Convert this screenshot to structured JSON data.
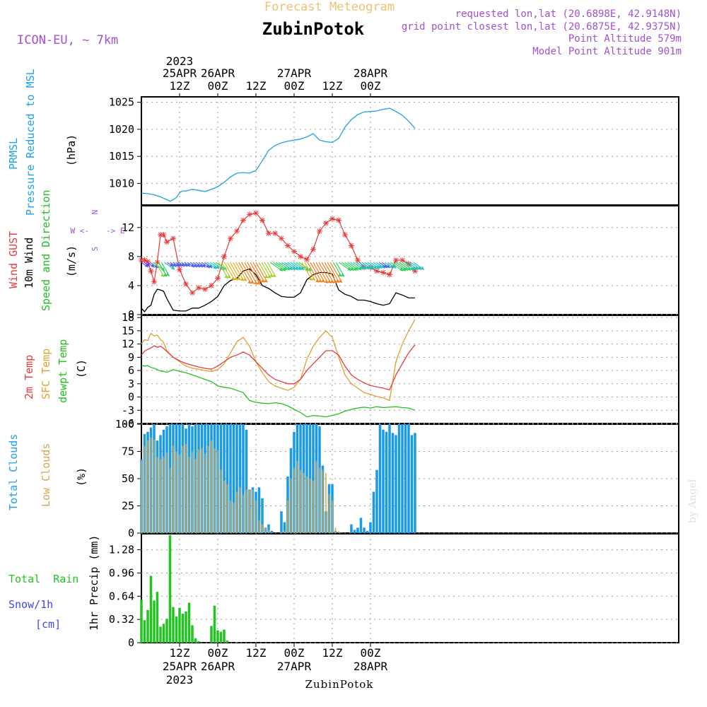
{
  "header": {
    "subtitle": "Forecast Meteogram",
    "title": "ZubinPotok",
    "model": "ICON-EU, ~ 7km",
    "requested": "requested lon,lat (20.6898E, 42.9148N)",
    "closest": "grid point closest lon,lat (20.6875E, 42.9375N)",
    "point_alt": "Point Altitude 579m",
    "model_alt": "Model Point Altitude 901m",
    "footer_station": "ZubinPotok",
    "credit": "by Angel"
  },
  "time_axis": {
    "top_year": "2023",
    "top_labels": [
      {
        "h": 12,
        "l1": "25APR",
        "l2": "12Z"
      },
      {
        "h": 24,
        "l1": "26APR",
        "l2": "00Z"
      },
      {
        "h": 36,
        "l1": "",
        "l2": "12Z"
      },
      {
        "h": 48,
        "l1": "27APR",
        "l2": "00Z"
      },
      {
        "h": 60,
        "l1": "",
        "l2": "12Z"
      },
      {
        "h": 72,
        "l1": "28APR",
        "l2": "00Z"
      }
    ],
    "bottom_labels": [
      {
        "h": 12,
        "l1": "12Z",
        "l2": "25APR",
        "l3": "2023"
      },
      {
        "h": 24,
        "l1": "00Z",
        "l2": "26APR",
        "l3": ""
      },
      {
        "h": 36,
        "l1": "12Z",
        "l2": "",
        "l3": ""
      },
      {
        "h": 48,
        "l1": "00Z",
        "l2": "27APR",
        "l3": ""
      },
      {
        "h": 60,
        "l1": "12Z",
        "l2": "",
        "l3": ""
      },
      {
        "h": 72,
        "l1": "00Z",
        "l2": "28APR",
        "l3": ""
      }
    ]
  },
  "panels": {
    "pressure": {
      "label1": "PRMSL",
      "label2": "Pressure Reduced to MSL",
      "unit": "(hPa)",
      "ticks": [
        "1010",
        "1015",
        "1020",
        "1025"
      ]
    },
    "wind": {
      "label1": "Wind GUST",
      "label2": "10m Wind",
      "label3": "Speed and Direction",
      "unit": "(m/s)",
      "ticks": [
        "0",
        "4",
        "8",
        "12"
      ],
      "compass_n": "N",
      "compass_w": "W <-",
      "compass_e": "-> E",
      "compass_s": "S"
    },
    "temp": {
      "label1": "2m Temp",
      "label2": "SFC Temp",
      "label3": "dewpt Temp",
      "unit": "(C)",
      "ticks": [
        "-6",
        "-3",
        "0",
        "3",
        "6",
        "9",
        "12",
        "15",
        "18"
      ]
    },
    "clouds": {
      "label1": "Total Clouds",
      "label2": "Low Clouds",
      "unit": "(%)",
      "ticks": [
        "0",
        "25",
        "50",
        "75",
        "100"
      ]
    },
    "precip": {
      "label1": "Total  Rain",
      "label2": "Snow/1h",
      "label3": "[cm]",
      "axis": "1hr Precip (mm)",
      "ticks": [
        "0",
        "0.32",
        "0.64",
        "0.96",
        "1.28"
      ]
    }
  },
  "colors": {
    "pressure": "#1fa0e6",
    "gust": "#e83a3a",
    "wind": "#000000",
    "temp2m": "#e83a3a",
    "sfc": "#e0a030",
    "dewpt": "#22c022",
    "total_clouds": "#1a99e6",
    "low_clouds": "#d4a84a",
    "rain": "#22c422",
    "snow": "#4444ee",
    "purple": "#a050d0",
    "header_orange": "#f0c070"
  },
  "chart_data": [
    {
      "type": "line",
      "name": "pressure",
      "x": [
        0,
        2,
        4,
        6,
        8,
        9,
        10,
        11,
        12,
        13,
        14,
        16,
        18,
        20,
        22,
        24,
        26,
        28,
        30,
        32,
        34,
        36,
        38,
        40,
        42,
        44,
        46,
        48,
        50,
        52,
        54,
        56,
        58,
        60,
        62,
        64,
        66,
        68,
        70,
        72,
        74,
        76,
        78,
        80,
        82,
        84,
        86
      ],
      "series": [
        {
          "name": "PRMSL",
          "values": [
            1008.2,
            1008.1,
            1007.9,
            1007.5,
            1007.0,
            1006.7,
            1007.0,
            1007.4,
            1008.3,
            1008.6,
            1008.6,
            1008.9,
            1008.7,
            1008.5,
            1008.9,
            1009.4,
            1010.2,
            1011.2,
            1011.9,
            1012.0,
            1011.9,
            1012.4,
            1014.2,
            1016.1,
            1017.0,
            1017.5,
            1017.8,
            1018.0,
            1018.2,
            1018.6,
            1019.2,
            1018.0,
            1017.7,
            1017.6,
            1018.3,
            1020.4,
            1021.8,
            1022.7,
            1023.2,
            1023.3,
            1023.4,
            1023.7,
            1023.9,
            1023.3,
            1022.6,
            1021.5,
            1020.2
          ]
        }
      ],
      "ylim": [
        1006,
        1026
      ]
    },
    {
      "type": "line",
      "name": "wind",
      "x": [
        0,
        1,
        2,
        3,
        4,
        5,
        6,
        7,
        8,
        10,
        12,
        14,
        16,
        18,
        20,
        22,
        24,
        26,
        28,
        30,
        32,
        34,
        36,
        38,
        40,
        42,
        44,
        46,
        48,
        50,
        52,
        54,
        56,
        58,
        60,
        62,
        64,
        66,
        68,
        70,
        72,
        74,
        76,
        78,
        80,
        82,
        84,
        86
      ],
      "series": [
        {
          "name": "Wind GUST",
          "values": [
            7.5,
            7.5,
            7.3,
            6.0,
            4.5,
            7.2,
            11.0,
            11.0,
            10.0,
            10.5,
            6.2,
            4.2,
            3.0,
            3.7,
            3.5,
            4.0,
            5.0,
            8.0,
            10.5,
            11.5,
            13.0,
            13.8,
            14.0,
            13.0,
            11.2,
            11.2,
            10.5,
            9.5,
            8.7,
            8.0,
            7.6,
            9.0,
            11.5,
            12.6,
            13.2,
            13.0,
            11.0,
            9.5,
            7.5,
            6.5,
            6.5,
            6.0,
            5.8,
            5.5,
            7.5,
            7.5,
            7.0,
            6.0
          ]
        },
        {
          "name": "10m Wind",
          "values": [
            0.9,
            0.4,
            1.0,
            1.3,
            2.8,
            3.5,
            3.4,
            3.2,
            2.2,
            0.6,
            0.5,
            0.5,
            0.9,
            0.9,
            1.3,
            1.8,
            2.5,
            4.0,
            4.7,
            5.0,
            6.0,
            6.3,
            5.5,
            4.0,
            3.6,
            3.0,
            2.5,
            2.4,
            2.4,
            3.0,
            4.8,
            5.5,
            5.8,
            5.8,
            5.6,
            3.4,
            2.8,
            2.5,
            2.0,
            2.0,
            1.8,
            1.5,
            1.3,
            1.5,
            3.0,
            2.7,
            2.3,
            2.3
          ]
        }
      ],
      "ylim": [
        0,
        15
      ]
    },
    {
      "type": "line",
      "name": "temperature",
      "x": [
        0,
        1,
        2,
        3,
        4,
        5,
        6,
        7,
        8,
        10,
        12,
        14,
        16,
        18,
        20,
        22,
        24,
        26,
        28,
        30,
        32,
        34,
        36,
        38,
        40,
        42,
        44,
        46,
        48,
        50,
        52,
        54,
        56,
        58,
        60,
        62,
        64,
        66,
        68,
        70,
        72,
        74,
        76,
        78,
        80,
        82,
        84,
        86
      ],
      "series": [
        {
          "name": "2m Temp",
          "values": [
            9.5,
            10.4,
            10.8,
            11.1,
            11.6,
            11.3,
            11.5,
            11.0,
            10.3,
            9.0,
            8.2,
            7.6,
            7.2,
            6.8,
            6.5,
            6.3,
            7.0,
            8.0,
            9.0,
            9.5,
            10.2,
            9.5,
            8.0,
            6.5,
            5.0,
            4.0,
            3.5,
            3.0,
            3.0,
            4.0,
            6.0,
            7.5,
            9.0,
            10.5,
            10.5,
            9.5,
            7.0,
            5.0,
            4.0,
            3.2,
            2.6,
            2.3,
            2.0,
            1.6,
            5.0,
            7.5,
            10.0,
            11.8
          ]
        },
        {
          "name": "SFC Temp",
          "values": [
            12.0,
            13.0,
            12.8,
            14.4,
            13.8,
            14.0,
            13.0,
            12.3,
            10.5,
            9.0,
            8.0,
            7.0,
            6.5,
            6.3,
            6.0,
            5.8,
            6.2,
            7.5,
            10.0,
            12.5,
            13.5,
            11.5,
            8.0,
            5.5,
            3.5,
            2.5,
            2.0,
            1.5,
            2.2,
            4.0,
            8.5,
            11.5,
            13.5,
            15.0,
            13.5,
            9.0,
            5.0,
            3.0,
            2.0,
            1.0,
            0.6,
            0.1,
            -0.2,
            -0.8,
            8.0,
            12.0,
            15.0,
            17.6
          ]
        },
        {
          "name": "dewpt Temp",
          "values": [
            7.2,
            7.0,
            7.1,
            6.7,
            6.5,
            6.2,
            5.9,
            5.8,
            5.6,
            6.2,
            5.8,
            5.5,
            5.0,
            4.5,
            4.0,
            3.5,
            2.5,
            2.2,
            2.0,
            1.5,
            1.0,
            -0.8,
            -1.2,
            -1.4,
            -1.5,
            -1.3,
            -1.5,
            -2.0,
            -2.8,
            -3.5,
            -4.5,
            -4.2,
            -4.3,
            -4.5,
            -4.2,
            -3.8,
            -3.2,
            -2.8,
            -2.5,
            -2.3,
            -2.5,
            -2.2,
            -2.4,
            -2.3,
            -2.2,
            -2.4,
            -2.5,
            -3.0
          ]
        }
      ],
      "ylim": [
        -6,
        18.5
      ]
    },
    {
      "type": "bar",
      "name": "clouds",
      "x": [
        0,
        1,
        2,
        3,
        4,
        5,
        6,
        7,
        8,
        9,
        10,
        11,
        12,
        13,
        14,
        15,
        16,
        17,
        18,
        19,
        20,
        21,
        22,
        23,
        24,
        25,
        26,
        27,
        28,
        29,
        30,
        31,
        32,
        33,
        34,
        35,
        36,
        37,
        38,
        39,
        40,
        41,
        42,
        43,
        44,
        45,
        46,
        47,
        48,
        49,
        50,
        51,
        52,
        53,
        54,
        55,
        56,
        57,
        58,
        59,
        60,
        61,
        62,
        63,
        64,
        65,
        66,
        67,
        68,
        69,
        70,
        71,
        72,
        73,
        74,
        75,
        76,
        77,
        78,
        79,
        80,
        81,
        82,
        83,
        84,
        85,
        86
      ],
      "series": [
        {
          "name": "Total Clouds",
          "values": [
            68,
            91,
            93,
            97,
            100,
            85,
            90,
            95,
            98,
            100,
            100,
            100,
            100,
            100,
            96,
            100,
            98,
            100,
            100,
            100,
            100,
            100,
            100,
            100,
            100,
            100,
            100,
            100,
            100,
            100,
            100,
            100,
            100,
            95,
            40,
            42,
            38,
            42,
            32,
            5,
            8,
            2,
            0,
            0,
            20,
            10,
            52,
            78,
            93,
            100,
            100,
            100,
            100,
            100,
            100,
            100,
            98,
            62,
            20,
            45,
            45,
            2,
            0,
            0,
            0,
            0,
            8,
            3,
            5,
            14,
            5,
            2,
            10,
            38,
            58,
            100,
            95,
            93,
            100,
            92,
            90,
            100,
            100,
            100,
            100,
            90,
            92
          ]
        },
        {
          "name": "Low Clouds",
          "values": [
            66,
            80,
            85,
            88,
            86,
            70,
            68,
            70,
            74,
            60,
            80,
            75,
            72,
            80,
            82,
            70,
            75,
            68,
            77,
            78,
            73,
            80,
            85,
            78,
            76,
            58,
            48,
            45,
            30,
            28,
            38,
            42,
            35,
            40,
            40,
            40,
            30,
            12,
            8,
            5,
            3,
            0,
            0,
            0,
            1,
            2,
            30,
            50,
            60,
            66,
            58,
            55,
            52,
            50,
            48,
            66,
            60,
            58,
            55,
            36,
            30,
            5,
            2,
            1,
            0,
            0,
            0,
            0,
            0,
            0,
            0,
            0,
            0,
            0,
            0,
            0,
            0,
            0,
            0,
            0,
            0,
            0,
            0,
            0,
            0,
            0,
            0
          ]
        }
      ],
      "ylim": [
        0,
        100
      ]
    },
    {
      "type": "bar",
      "name": "precipitation",
      "x": [
        0,
        1,
        2,
        3,
        4,
        5,
        6,
        7,
        8,
        9,
        10,
        11,
        12,
        13,
        14,
        15,
        16,
        17,
        18,
        19,
        20,
        21,
        22,
        23,
        24,
        25,
        26,
        27,
        28,
        29,
        30,
        31,
        32,
        33,
        34,
        35,
        36,
        37,
        38,
        39,
        40
      ],
      "series": [
        {
          "name": "Total Rain",
          "values": [
            0.59,
            0.31,
            0.45,
            0.92,
            0.58,
            0.7,
            0.22,
            0.26,
            0.33,
            1.48,
            0.49,
            0.36,
            0.48,
            0.4,
            0.43,
            0.55,
            0.24,
            0.06,
            0.02,
            0,
            0,
            0,
            0.23,
            0.51,
            0.17,
            0.15,
            0.18,
            0.03,
            0,
            0,
            0.01,
            0,
            0,
            0,
            0,
            0,
            0,
            0,
            0,
            0,
            0
          ]
        },
        {
          "name": "Snow/1h",
          "values": [
            0,
            0,
            0,
            0,
            0,
            0,
            0,
            0,
            0,
            0,
            0,
            0,
            0,
            0,
            0,
            0,
            0,
            0,
            0,
            0,
            0,
            0,
            0,
            0,
            0,
            0,
            0,
            0,
            0,
            0,
            0,
            0,
            0,
            0,
            0,
            0,
            0,
            0,
            0,
            0,
            0
          ]
        }
      ],
      "ylim": [
        0,
        1.5
      ]
    }
  ]
}
